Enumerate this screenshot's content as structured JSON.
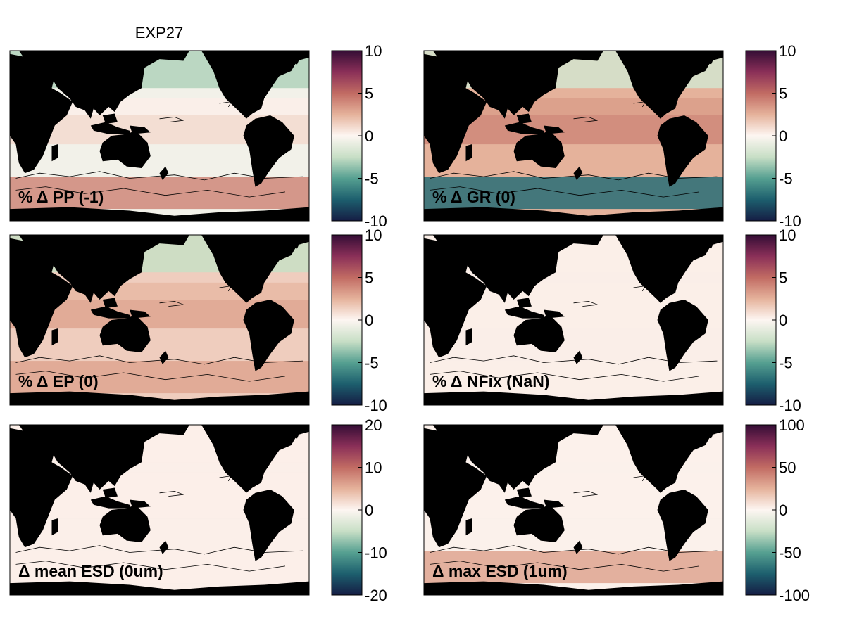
{
  "chart_data": {
    "type": "heatmap",
    "title": "EXP27",
    "colormap": {
      "name": "diverging curl",
      "stops": [
        "#151d44",
        "#1d5f6e",
        "#56a091",
        "#c8dfc6",
        "#fdf6f2",
        "#e5b29b",
        "#c16b63",
        "#8a2f58",
        "#340d35"
      ]
    },
    "land_color": "#000000",
    "panels": [
      {
        "label": "% Δ PP (-1)",
        "vmin": -10,
        "vmax": 10,
        "cbar_ticks": [
          {
            "v": 10,
            "t": "10"
          },
          {
            "v": 5,
            "t": "5"
          },
          {
            "v": 0,
            "t": "0"
          },
          {
            "v": -5,
            "t": "-5"
          },
          {
            "v": -10,
            "t": "-10"
          }
        ],
        "field": {
          "mean": -0.5,
          "equatorial": 1.0,
          "subpolar_north": -3.0,
          "southern_ocean": 4.0
        }
      },
      {
        "label": "% Δ GR (0)",
        "vmin": -10,
        "vmax": 10,
        "cbar_ticks": [
          {
            "v": 10,
            "t": "10"
          },
          {
            "v": 5,
            "t": "5"
          },
          {
            "v": 0,
            "t": "0"
          },
          {
            "v": -5,
            "t": "-5"
          },
          {
            "v": -10,
            "t": "-10"
          }
        ],
        "field": {
          "mean": 2.5,
          "equatorial": 4.0,
          "subpolar_north": -2.0,
          "southern_ocean": -7.0
        }
      },
      {
        "label": "% Δ EP (0)",
        "vmin": -10,
        "vmax": 10,
        "cbar_ticks": [
          {
            "v": 10,
            "t": "10"
          },
          {
            "v": 5,
            "t": "5"
          },
          {
            "v": 0,
            "t": "0"
          },
          {
            "v": -5,
            "t": "-5"
          },
          {
            "v": -10,
            "t": "-10"
          }
        ],
        "field": {
          "mean": 1.5,
          "equatorial": 3.0,
          "subpolar_north": -2.5,
          "southern_ocean": 3.0
        }
      },
      {
        "label": "% Δ NFix (NaN)",
        "vmin": -10,
        "vmax": 10,
        "cbar_ticks": [
          {
            "v": 10,
            "t": "10"
          },
          {
            "v": 5,
            "t": "5"
          },
          {
            "v": 0,
            "t": "0"
          },
          {
            "v": -5,
            "t": "-5"
          },
          {
            "v": -10,
            "t": "-10"
          }
        ],
        "field": {
          "mean": 0.3,
          "equatorial": 0.3,
          "subpolar_north": 0.3,
          "southern_ocean": 0.3
        }
      },
      {
        "label": "Δ mean ESD (0um)",
        "vmin": -20,
        "vmax": 20,
        "cbar_ticks": [
          {
            "v": 20,
            "t": "20"
          },
          {
            "v": 10,
            "t": "10"
          },
          {
            "v": 0,
            "t": "0"
          },
          {
            "v": -10,
            "t": "-10"
          },
          {
            "v": -20,
            "t": "-20"
          }
        ],
        "field": {
          "mean": 0.5,
          "equatorial": 0.5,
          "subpolar_north": 0.5,
          "southern_ocean": 0.5
        }
      },
      {
        "label": "Δ max ESD (1um)",
        "vmin": -100,
        "vmax": 100,
        "cbar_ticks": [
          {
            "v": 100,
            "t": "100"
          },
          {
            "v": 50,
            "t": "50"
          },
          {
            "v": 0,
            "t": "0"
          },
          {
            "v": -50,
            "t": "-50"
          },
          {
            "v": -100,
            "t": "-100"
          }
        ],
        "field": {
          "mean": 2.0,
          "equatorial": 2.0,
          "subpolar_north": 2.0,
          "southern_ocean": 30.0
        }
      }
    ]
  }
}
